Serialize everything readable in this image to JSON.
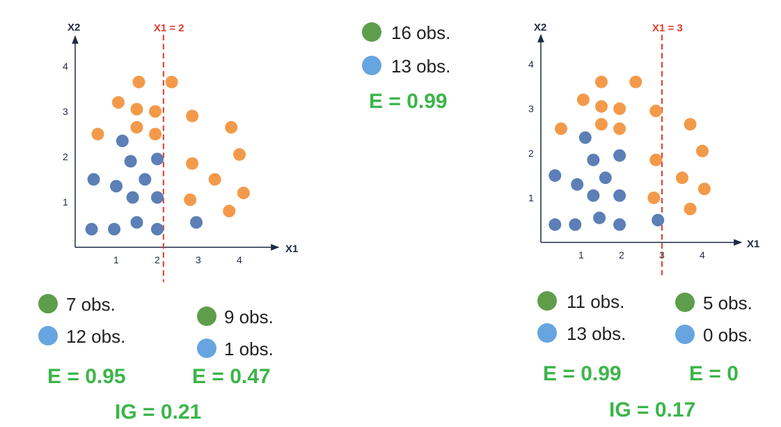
{
  "colors": {
    "orange_point": "#f39a4a",
    "blue_point": "#5b7fb6",
    "green_dot": "#5e9e4a",
    "blue_dot": "#66a5df",
    "split_line": "#e03c2c",
    "axis": "#1f2a44",
    "stat_green": "#3cb54a"
  },
  "top_stats": {
    "green_obs": "16 obs.",
    "blue_obs": "13 obs.",
    "entropy": "E = 0.99"
  },
  "chart_data": [
    {
      "type": "scatter",
      "xlabel": "X1",
      "ylabel": "X2",
      "xticks": [
        "1",
        "2",
        "3",
        "4"
      ],
      "yticks": [
        "1",
        "2",
        "3",
        "4"
      ],
      "split_label": "X1 = 2",
      "split_x": 2.15,
      "series": [
        {
          "color": "orange",
          "points": [
            [
              1.55,
              3.65
            ],
            [
              2.35,
              3.65
            ],
            [
              1.05,
              3.2
            ],
            [
              1.5,
              3.05
            ],
            [
              1.95,
              3.0
            ],
            [
              2.85,
              2.9
            ],
            [
              1.5,
              2.65
            ],
            [
              1.95,
              2.5
            ],
            [
              0.55,
              2.5
            ],
            [
              3.8,
              2.65
            ],
            [
              4.0,
              2.05
            ],
            [
              2.85,
              1.85
            ],
            [
              3.4,
              1.5
            ],
            [
              4.1,
              1.2
            ],
            [
              2.8,
              1.05
            ],
            [
              3.75,
              0.8
            ]
          ]
        },
        {
          "color": "blue",
          "points": [
            [
              1.15,
              2.35
            ],
            [
              1.35,
              1.9
            ],
            [
              2.0,
              1.95
            ],
            [
              0.45,
              1.5
            ],
            [
              1.0,
              1.35
            ],
            [
              1.7,
              1.5
            ],
            [
              1.4,
              1.1
            ],
            [
              2.0,
              1.1
            ],
            [
              0.4,
              0.4
            ],
            [
              0.95,
              0.4
            ],
            [
              1.5,
              0.55
            ],
            [
              2.0,
              0.4
            ],
            [
              2.95,
              0.55
            ]
          ]
        }
      ],
      "legend_left": {
        "green_obs": "7 obs.",
        "blue_obs": "12 obs.",
        "entropy": "E = 0.95"
      },
      "legend_right": {
        "green_obs": "9 obs.",
        "blue_obs": "1 obs.",
        "entropy": "E = 0.47"
      },
      "info_gain": "IG = 0.21"
    },
    {
      "type": "scatter",
      "xlabel": "X1",
      "ylabel": "X2",
      "xticks": [
        "1",
        "2",
        "3",
        "4"
      ],
      "yticks": [
        "1",
        "2",
        "3",
        "4"
      ],
      "split_label": "X1 = 3",
      "split_x": 3.0,
      "series": [
        {
          "color": "orange",
          "points": [
            [
              1.5,
              3.6
            ],
            [
              2.35,
              3.6
            ],
            [
              1.05,
              3.2
            ],
            [
              1.5,
              3.05
            ],
            [
              1.95,
              3.0
            ],
            [
              2.85,
              2.95
            ],
            [
              1.5,
              2.65
            ],
            [
              1.95,
              2.55
            ],
            [
              0.5,
              2.55
            ],
            [
              3.7,
              2.65
            ],
            [
              4.0,
              2.05
            ],
            [
              2.85,
              1.85
            ],
            [
              3.5,
              1.45
            ],
            [
              4.05,
              1.2
            ],
            [
              2.8,
              1.0
            ],
            [
              3.7,
              0.75
            ]
          ]
        },
        {
          "color": "blue",
          "points": [
            [
              1.1,
              2.35
            ],
            [
              1.3,
              1.85
            ],
            [
              1.95,
              1.95
            ],
            [
              0.35,
              1.5
            ],
            [
              0.9,
              1.3
            ],
            [
              1.6,
              1.45
            ],
            [
              1.3,
              1.05
            ],
            [
              1.95,
              1.05
            ],
            [
              0.35,
              0.4
            ],
            [
              0.85,
              0.4
            ],
            [
              1.45,
              0.55
            ],
            [
              1.95,
              0.4
            ],
            [
              2.9,
              0.5
            ]
          ]
        }
      ],
      "legend_left": {
        "green_obs": "11 obs.",
        "blue_obs": "13 obs.",
        "entropy": "E = 0.99"
      },
      "legend_right": {
        "green_obs": "5 obs.",
        "blue_obs": "0 obs.",
        "entropy": "E = 0"
      },
      "info_gain": "IG = 0.17"
    }
  ]
}
